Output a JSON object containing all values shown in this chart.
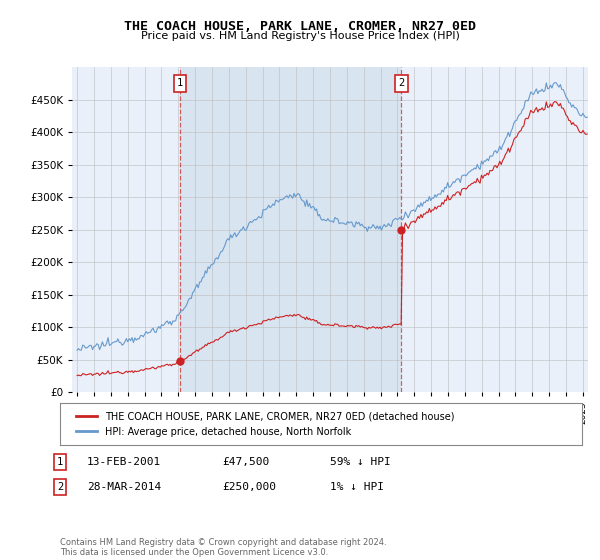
{
  "title": "THE COACH HOUSE, PARK LANE, CROMER, NR27 0ED",
  "subtitle": "Price paid vs. HM Land Registry's House Price Index (HPI)",
  "ylim": [
    0,
    500000
  ],
  "yticks": [
    0,
    50000,
    100000,
    150000,
    200000,
    250000,
    300000,
    350000,
    400000,
    450000
  ],
  "xlim_start": 1994.7,
  "xlim_end": 2025.3,
  "hpi_color": "#6699CC",
  "price_color": "#CC2222",
  "shade_color": "#D8E4F0",
  "purchase1_x": 2001.11,
  "purchase1_y": 47500,
  "purchase2_x": 2014.24,
  "purchase2_y": 250000,
  "legend_line1": "THE COACH HOUSE, PARK LANE, CROMER, NR27 0ED (detached house)",
  "legend_line2": "HPI: Average price, detached house, North Norfolk",
  "annotation1_date": "13-FEB-2001",
  "annotation1_price": "£47,500",
  "annotation1_pct": "59% ↓ HPI",
  "annotation2_date": "28-MAR-2014",
  "annotation2_price": "£250,000",
  "annotation2_pct": "1% ↓ HPI",
  "footer": "Contains HM Land Registry data © Crown copyright and database right 2024.\nThis data is licensed under the Open Government Licence v3.0.",
  "bg_color": "#EAF0FA",
  "plot_bg": "#FFFFFF"
}
